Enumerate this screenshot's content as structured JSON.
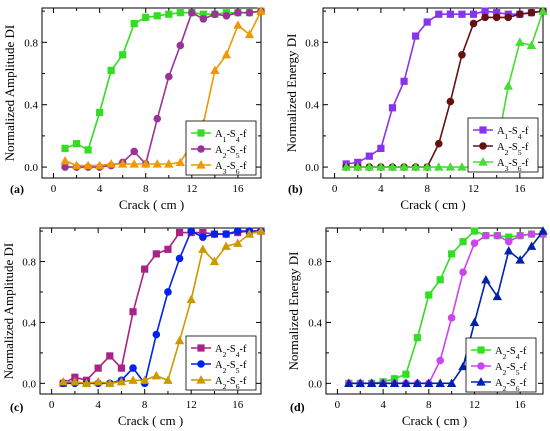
{
  "figure": {
    "panels": [
      {
        "letter": "(a)",
        "ylabel": "Normalized Amplitude DI",
        "xlabel": "Crack ( cm )"
      },
      {
        "letter": "(b)",
        "ylabel": "Normalized Energy DI",
        "xlabel": "Crack ( cm )"
      },
      {
        "letter": "(c)",
        "ylabel": "Normalized Amplitude DI",
        "xlabel": "Crack ( cm )"
      },
      {
        "letter": "(d)",
        "ylabel": "Normalized Energy DI",
        "xlabel": "Crack ( cm )"
      }
    ]
  },
  "chart_data": [
    {
      "type": "line",
      "panel": "(a)",
      "xlabel": "Crack ( cm )",
      "ylabel": "Normalized Amplitude DI",
      "xlim": [
        -1,
        18
      ],
      "ylim": [
        -0.07,
        1.02
      ],
      "xticks": [
        0,
        4,
        8,
        12,
        16
      ],
      "yticks": [
        0.0,
        0.4,
        0.8
      ],
      "ytick_labels": [
        "0.0",
        "0.4",
        "0.8"
      ],
      "legend": {
        "position": "bottom-right"
      },
      "x": [
        1,
        2,
        3,
        4,
        5,
        6,
        7,
        8,
        9,
        10,
        11,
        12,
        13,
        14,
        15,
        16,
        17,
        18
      ],
      "series": [
        {
          "name": "A1-S4-f",
          "label_parts": [
            [
              "A",
              "1"
            ],
            [
              "-S",
              "4"
            ],
            [
              "-f",
              ""
            ]
          ],
          "color": "#33dd22",
          "marker": "square",
          "values": [
            0.12,
            0.15,
            0.11,
            0.35,
            0.62,
            0.72,
            0.92,
            0.96,
            0.97,
            0.98,
            0.99,
            0.99,
            0.98,
            0.98,
            0.99,
            0.99,
            0.99,
            1.0
          ]
        },
        {
          "name": "A2-S5-f",
          "label_parts": [
            [
              "A",
              "2"
            ],
            [
              "-S",
              "5"
            ],
            [
              "-f",
              ""
            ]
          ],
          "color": "#993399",
          "marker": "circle",
          "values": [
            0.0,
            0.0,
            0.0,
            0.0,
            0.01,
            0.03,
            0.1,
            0.02,
            0.31,
            0.58,
            0.78,
            0.99,
            0.95,
            0.98,
            0.97,
            0.99,
            0.99,
            1.0
          ]
        },
        {
          "name": "A3-S6-f",
          "label_parts": [
            [
              "A",
              "3"
            ],
            [
              "-S",
              "6"
            ],
            [
              "-f",
              ""
            ]
          ],
          "color": "#ee9900",
          "marker": "triangle",
          "values": [
            0.04,
            0.01,
            0.01,
            0.01,
            0.02,
            0.02,
            0.02,
            0.02,
            0.02,
            0.02,
            0.03,
            0.15,
            0.28,
            0.62,
            0.72,
            0.91,
            0.85,
            1.0
          ]
        }
      ]
    },
    {
      "type": "line",
      "panel": "(b)",
      "xlabel": "Crack ( cm )",
      "ylabel": "Normalized Energy DI",
      "xlim": [
        -1,
        18
      ],
      "ylim": [
        -0.07,
        1.02
      ],
      "xticks": [
        0,
        4,
        8,
        12,
        16
      ],
      "yticks": [
        0.0,
        0.4,
        0.8
      ],
      "ytick_labels": [
        "0.0",
        "0.4",
        "0.8"
      ],
      "legend": {
        "position": "bottom-right"
      },
      "x": [
        1,
        2,
        3,
        4,
        5,
        6,
        7,
        8,
        9,
        10,
        11,
        12,
        13,
        14,
        15,
        16,
        17,
        18
      ],
      "series": [
        {
          "name": "A1-S4-f",
          "label_parts": [
            [
              "A",
              "1"
            ],
            [
              "-S",
              "4"
            ],
            [
              "-f",
              ""
            ]
          ],
          "color": "#8833ee",
          "marker": "square",
          "values": [
            0.02,
            0.03,
            0.07,
            0.12,
            0.38,
            0.55,
            0.84,
            0.93,
            0.98,
            0.98,
            0.98,
            0.98,
            1.0,
            0.99,
            0.98,
            0.98,
            0.99,
            1.0
          ]
        },
        {
          "name": "A2-S5-f",
          "label_parts": [
            [
              "A",
              "2"
            ],
            [
              "-S",
              "5"
            ],
            [
              "-f",
              ""
            ]
          ],
          "color": "#661111",
          "marker": "circle",
          "values": [
            0.0,
            0.0,
            0.0,
            0.0,
            0.0,
            0.0,
            0.0,
            0.0,
            0.15,
            0.42,
            0.72,
            0.92,
            0.96,
            0.96,
            0.96,
            0.98,
            0.99,
            1.0
          ]
        },
        {
          "name": "A3-S6-f",
          "label_parts": [
            [
              "A",
              "3"
            ],
            [
              "-S",
              "6"
            ],
            [
              "-f",
              ""
            ]
          ],
          "color": "#44dd33",
          "marker": "triangle",
          "values": [
            0.0,
            0.0,
            0.0,
            0.0,
            0.0,
            0.0,
            0.0,
            0.0,
            0.0,
            0.0,
            0.0,
            0.0,
            0.01,
            0.12,
            0.52,
            0.8,
            0.78,
            1.0
          ]
        }
      ]
    },
    {
      "type": "line",
      "panel": "(c)",
      "xlabel": "Crack ( cm )",
      "ylabel": "Normalized Amplitude DI",
      "xlim": [
        -1,
        18
      ],
      "ylim": [
        -0.07,
        1.02
      ],
      "xticks": [
        0,
        4,
        8,
        12,
        16
      ],
      "yticks": [
        0.0,
        0.4,
        0.8
      ],
      "ytick_labels": [
        "0.0",
        "0.4",
        "0.8"
      ],
      "legend": {
        "position": "bottom-right"
      },
      "x": [
        1,
        2,
        3,
        4,
        5,
        6,
        7,
        8,
        9,
        10,
        11,
        12,
        13,
        14,
        15,
        16,
        17,
        18
      ],
      "series": [
        {
          "name": "A2-S4-f",
          "label_parts": [
            [
              "A",
              "2"
            ],
            [
              "-S",
              "4"
            ],
            [
              "-f",
              ""
            ]
          ],
          "color": "#aa2288",
          "marker": "square",
          "values": [
            0.0,
            0.04,
            0.02,
            0.1,
            0.18,
            0.1,
            0.47,
            0.75,
            0.85,
            0.88,
            0.99,
            0.99,
            0.99,
            0.98,
            0.98,
            0.99,
            1.0,
            1.0
          ]
        },
        {
          "name": "A2-S5-f",
          "label_parts": [
            [
              "A",
              "2"
            ],
            [
              "-S",
              "5"
            ],
            [
              "-f",
              ""
            ]
          ],
          "color": "#0022ee",
          "marker": "circle",
          "values": [
            0.0,
            0.0,
            0.0,
            0.0,
            0.0,
            0.02,
            0.1,
            0.0,
            0.32,
            0.6,
            0.82,
            1.0,
            0.96,
            0.98,
            0.98,
            1.0,
            1.0,
            1.0
          ]
        },
        {
          "name": "A2-S6-f",
          "label_parts": [
            [
              "A",
              "2"
            ],
            [
              "-S",
              "6"
            ],
            [
              "-f",
              ""
            ]
          ],
          "color": "#cc9900",
          "marker": "triangle",
          "values": [
            0.01,
            0.01,
            0.0,
            0.01,
            0.0,
            0.01,
            0.02,
            0.02,
            0.05,
            0.02,
            0.28,
            0.55,
            0.88,
            0.8,
            0.9,
            0.92,
            0.98,
            1.0
          ]
        }
      ]
    },
    {
      "type": "line",
      "panel": "(d)",
      "xlabel": "Crack ( cm )",
      "ylabel": "Normalized Energy DI",
      "xlim": [
        -1,
        18
      ],
      "ylim": [
        -0.07,
        1.02
      ],
      "xticks": [
        0,
        4,
        8,
        12,
        16
      ],
      "yticks": [
        0.0,
        0.4,
        0.8
      ],
      "ytick_labels": [
        "0.0",
        "0.4",
        "0.8"
      ],
      "legend": {
        "position": "bottom-right"
      },
      "x": [
        1,
        2,
        3,
        4,
        5,
        6,
        7,
        8,
        9,
        10,
        11,
        12,
        13,
        14,
        15,
        16,
        17,
        18
      ],
      "series": [
        {
          "name": "A2-S4-f",
          "label_parts": [
            [
              "A",
              "2"
            ],
            [
              "-S",
              "4"
            ],
            [
              "-f",
              ""
            ]
          ],
          "color": "#33dd22",
          "marker": "square",
          "values": [
            0.0,
            0.0,
            0.0,
            0.01,
            0.03,
            0.06,
            0.3,
            0.58,
            0.68,
            0.85,
            0.93,
            1.0,
            0.97,
            0.97,
            0.96,
            0.97,
            0.98,
            0.98
          ]
        },
        {
          "name": "A2-S5-f",
          "label_parts": [
            [
              "A",
              "2"
            ],
            [
              "-S",
              "5"
            ],
            [
              "-f",
              ""
            ]
          ],
          "color": "#cc44ee",
          "marker": "circle",
          "values": [
            0.0,
            0.0,
            0.0,
            0.0,
            0.0,
            0.0,
            0.0,
            0.0,
            0.15,
            0.43,
            0.73,
            0.92,
            0.97,
            0.97,
            0.93,
            0.97,
            0.98,
            0.98
          ]
        },
        {
          "name": "A2-S6-f",
          "label_parts": [
            [
              "A",
              "2"
            ],
            [
              "-S",
              "6"
            ],
            [
              "-f",
              ""
            ]
          ],
          "color": "#0022aa",
          "marker": "triangle",
          "values": [
            0.0,
            0.0,
            0.0,
            0.0,
            0.0,
            0.0,
            0.0,
            0.0,
            0.0,
            0.0,
            0.11,
            0.4,
            0.68,
            0.57,
            0.87,
            0.81,
            0.9,
            1.0
          ]
        }
      ]
    }
  ]
}
